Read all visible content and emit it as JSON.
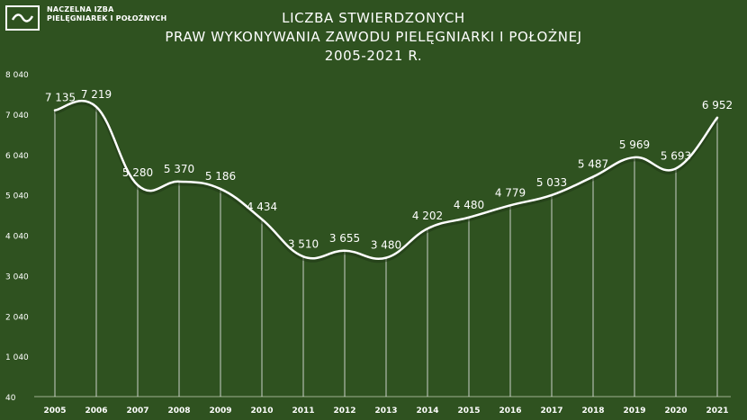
{
  "logo": {
    "icon": "wave-icon",
    "line1": "NACZELNA IZBA",
    "line2": "PIELĘGNIAREK I POŁOŻNYCH"
  },
  "chart_data": {
    "type": "line",
    "title": [
      "LICZBA STWIERDZONYCH",
      "PRAW WYKONYWANIA ZAWODU PIELĘGNIARKI I POŁOŻNEJ",
      "2005-2021 R."
    ],
    "xlabel": "",
    "ylabel": "",
    "categories": [
      "2005",
      "2006",
      "2007",
      "2008",
      "2009",
      "2010",
      "2011",
      "2012",
      "2013",
      "2014",
      "2015",
      "2016",
      "2017",
      "2018",
      "2019",
      "2020",
      "2021"
    ],
    "values": [
      7135,
      7219,
      5280,
      5370,
      5186,
      4434,
      3510,
      3655,
      3480,
      4202,
      4480,
      4779,
      5033,
      5487,
      5969,
      5693,
      6952
    ],
    "value_labels": [
      "7 135",
      "7 219",
      "5 280",
      "5 370",
      "5 186",
      "4 434",
      "3 510",
      "3 655",
      "3 480",
      "4 202",
      "4 480",
      "4 779",
      "5 033",
      "5 487",
      "5 969",
      "5 693",
      "6 952"
    ],
    "yticks": [
      40,
      1040,
      2040,
      3040,
      4040,
      5040,
      6040,
      7040,
      8040
    ],
    "ytick_labels": [
      "40",
      "1 040",
      "2 040",
      "3 040",
      "4 040",
      "5 040",
      "6 040",
      "7 040",
      "8 040"
    ],
    "ylim": [
      40,
      8040
    ],
    "smooth": true,
    "drop_lines": true,
    "grid": false,
    "colors": {
      "background": "#2f5220",
      "line": "#ffffff",
      "drop_line": "#e6e6e6",
      "text": "#ffffff"
    }
  }
}
